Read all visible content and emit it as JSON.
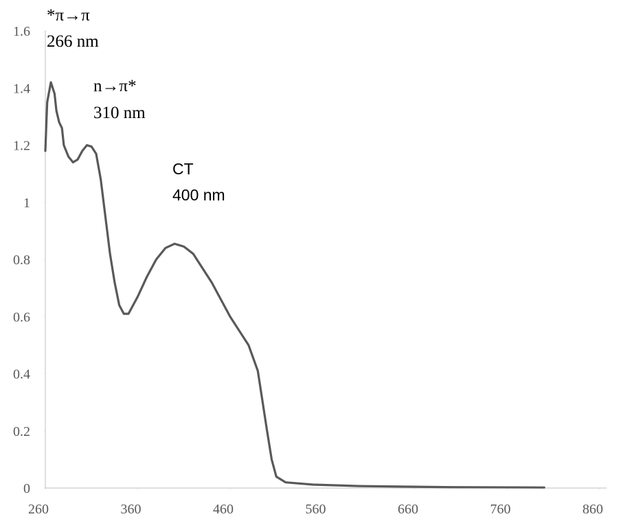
{
  "chart_data": {
    "type": "line",
    "annotations": [
      "*π→π",
      "266 nm",
      "n→π*",
      "310 nm",
      "CT",
      "400 nm"
    ],
    "series": [
      {
        "color": "#595959",
        "x": [
          260,
          262,
          266,
          270,
          272,
          275,
          278,
          280,
          285,
          290,
          295,
          300,
          305,
          310,
          315,
          320,
          325,
          330,
          335,
          340,
          345,
          350,
          360,
          370,
          380,
          390,
          400,
          410,
          420,
          430,
          440,
          450,
          460,
          470,
          480,
          490,
          500,
          505,
          510,
          520,
          550,
          600,
          700,
          800
        ],
        "values": [
          1.18,
          1.35,
          1.42,
          1.38,
          1.32,
          1.28,
          1.26,
          1.2,
          1.16,
          1.14,
          1.15,
          1.18,
          1.2,
          1.195,
          1.17,
          1.08,
          0.95,
          0.82,
          0.72,
          0.64,
          0.61,
          0.61,
          0.67,
          0.74,
          0.8,
          0.84,
          0.855,
          0.845,
          0.82,
          0.77,
          0.72,
          0.66,
          0.6,
          0.55,
          0.5,
          0.41,
          0.2,
          0.1,
          0.04,
          0.02,
          0.012,
          0.007,
          0.003,
          0.002
        ]
      }
    ],
    "xlim": [
      260,
      860
    ],
    "xticks": [
      260,
      360,
      460,
      560,
      660,
      760,
      860
    ],
    "ylim": [
      0,
      1.6
    ],
    "yticks": [
      0,
      0.2,
      0.4,
      0.6,
      0.8,
      1,
      1.2,
      1.4,
      1.6
    ],
    "grid": false
  }
}
